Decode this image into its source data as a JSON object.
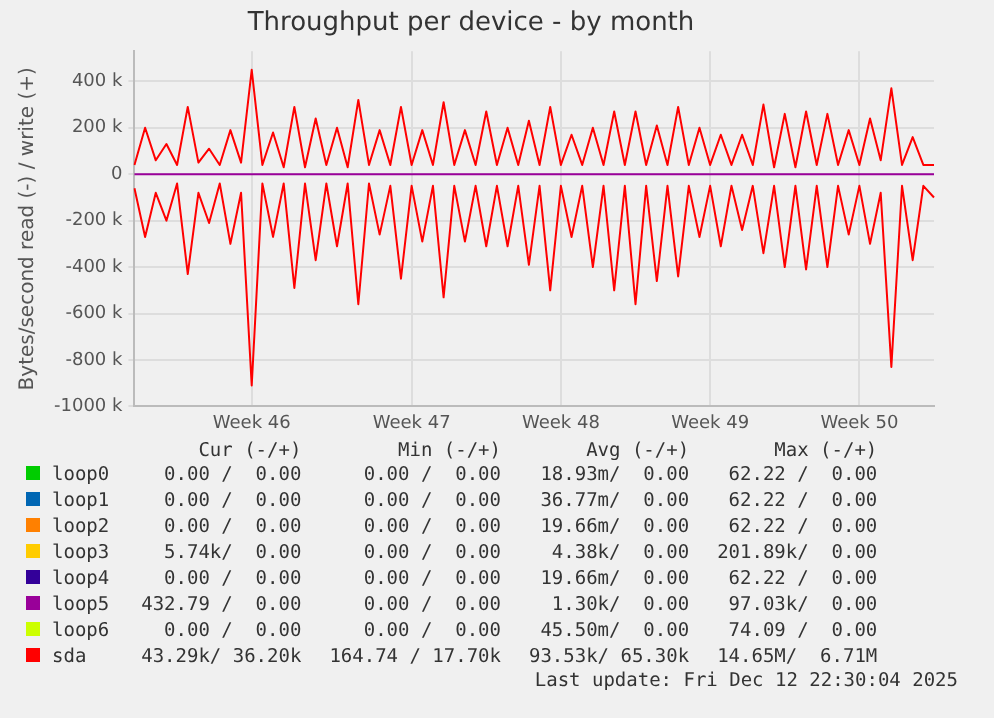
{
  "chart_data": {
    "type": "line",
    "title": "Throughput per device - by month",
    "ylabel": "Bytes/second read (-) / write (+)",
    "categories": [
      null,
      null,
      null,
      null,
      null,
      null,
      null,
      null,
      null,
      null,
      null,
      "Week 46",
      null,
      null,
      null,
      null,
      null,
      null,
      null,
      null,
      null,
      null,
      null,
      null,
      null,
      null,
      "Week 47",
      null,
      null,
      null,
      null,
      null,
      null,
      null,
      null,
      null,
      null,
      null,
      null,
      null,
      "Week 48",
      null,
      null,
      null,
      null,
      null,
      null,
      null,
      null,
      null,
      null,
      null,
      null,
      null,
      "Week 49",
      null,
      null,
      null,
      null,
      null,
      null,
      null,
      null,
      null,
      null,
      null,
      null,
      null,
      "Week 50",
      null,
      null,
      null,
      null,
      null,
      null,
      null
    ],
    "ylim": [
      -1000000,
      530000
    ],
    "yticks": [
      {
        "value": -1000000,
        "label": "-1000 k"
      },
      {
        "value": -800000,
        "label": "-800 k"
      },
      {
        "value": -600000,
        "label": "-600 k"
      },
      {
        "value": -400000,
        "label": "-400 k"
      },
      {
        "value": -200000,
        "label": "-200 k"
      },
      0,
      {
        "value": 200000,
        "label": "200 k"
      },
      {
        "value": 400000,
        "label": "400 k"
      }
    ],
    "grid": true,
    "legend": "bottom",
    "marker": "none",
    "line_style": "solid",
    "series": [
      {
        "name": "loop0",
        "color": "#00cc00",
        "values": [
          null,
          null,
          null,
          null,
          null,
          null,
          null,
          null,
          null,
          null,
          null,
          null,
          null,
          null,
          null,
          null,
          null,
          null,
          null,
          null,
          null,
          null,
          null,
          null,
          null,
          null,
          null,
          null,
          null,
          null,
          null,
          null,
          null,
          null,
          null,
          null,
          null,
          null,
          null,
          null,
          null,
          null,
          null,
          null,
          null,
          null,
          null,
          null,
          null,
          null,
          null,
          null,
          null,
          null,
          null,
          null,
          null,
          null,
          null,
          null,
          null,
          null,
          null,
          null,
          null,
          null,
          null,
          null,
          null,
          null,
          null,
          null,
          null,
          null,
          null,
          null
        ]
      },
      {
        "name": "loop1",
        "color": "#0066b3",
        "values": [
          null,
          null,
          null,
          null,
          null,
          null,
          null,
          null,
          null,
          null,
          null,
          null,
          null,
          null,
          null,
          null,
          null,
          null,
          null,
          null,
          null,
          null,
          null,
          null,
          null,
          null,
          null,
          null,
          null,
          null,
          null,
          null,
          null,
          null,
          null,
          null,
          null,
          null,
          null,
          null,
          null,
          null,
          null,
          null,
          null,
          null,
          null,
          null,
          null,
          null,
          null,
          null,
          null,
          null,
          null,
          null,
          null,
          null,
          null,
          null,
          null,
          null,
          null,
          null,
          null,
          null,
          null,
          null,
          null,
          null,
          null,
          null,
          null,
          null,
          null,
          null
        ]
      },
      {
        "name": "loop2",
        "color": "#ff8000",
        "values": [
          null,
          null,
          null,
          null,
          null,
          null,
          null,
          null,
          null,
          null,
          null,
          null,
          null,
          null,
          null,
          null,
          null,
          null,
          null,
          null,
          null,
          null,
          null,
          null,
          null,
          null,
          null,
          null,
          null,
          null,
          null,
          null,
          null,
          null,
          null,
          null,
          null,
          null,
          null,
          null,
          null,
          null,
          null,
          null,
          null,
          null,
          null,
          null,
          null,
          null,
          null,
          null,
          null,
          null,
          null,
          null,
          null,
          null,
          null,
          null,
          null,
          null,
          null,
          null,
          null,
          null,
          null,
          null,
          null,
          null,
          null,
          null,
          null,
          null,
          null,
          null
        ]
      },
      {
        "name": "loop3",
        "color": "#ffcc00",
        "values": [
          null,
          null,
          null,
          null,
          null,
          null,
          null,
          null,
          null,
          null,
          null,
          null,
          null,
          null,
          null,
          null,
          null,
          null,
          null,
          null,
          null,
          null,
          null,
          null,
          null,
          null,
          null,
          null,
          null,
          null,
          null,
          null,
          null,
          null,
          null,
          null,
          null,
          null,
          null,
          null,
          null,
          null,
          null,
          null,
          null,
          null,
          null,
          null,
          null,
          null,
          null,
          null,
          null,
          null,
          null,
          null,
          null,
          null,
          null,
          null,
          null,
          null,
          null,
          null,
          null,
          null,
          null,
          null,
          null,
          null,
          null,
          null,
          null,
          null,
          null,
          null
        ]
      },
      {
        "name": "loop4",
        "color": "#330099",
        "values": [
          null,
          null,
          null,
          null,
          null,
          null,
          null,
          null,
          null,
          null,
          null,
          null,
          null,
          null,
          null,
          null,
          null,
          null,
          null,
          null,
          null,
          null,
          null,
          null,
          null,
          null,
          null,
          null,
          null,
          null,
          null,
          null,
          null,
          null,
          null,
          null,
          null,
          null,
          null,
          null,
          null,
          null,
          null,
          null,
          null,
          null,
          null,
          null,
          null,
          null,
          null,
          null,
          null,
          null,
          null,
          null,
          null,
          null,
          null,
          null,
          null,
          null,
          null,
          null,
          null,
          null,
          null,
          null,
          null,
          null,
          null,
          null,
          null,
          null,
          null,
          null
        ]
      },
      {
        "name": "loop5",
        "color": "#990099",
        "values": [
          0,
          0,
          0,
          0,
          0,
          0,
          0,
          0,
          0,
          0,
          0,
          0,
          0,
          0,
          0,
          0,
          0,
          0,
          0,
          0,
          0,
          0,
          0,
          0,
          0,
          0,
          0,
          0,
          0,
          0,
          0,
          0,
          0,
          0,
          0,
          0,
          0,
          0,
          0,
          0,
          0,
          0,
          0,
          0,
          0,
          0,
          0,
          0,
          0,
          0,
          0,
          0,
          0,
          0,
          0,
          0,
          0,
          0,
          0,
          0,
          0,
          0,
          0,
          0,
          0,
          0,
          0,
          0,
          0,
          0,
          0,
          0,
          0,
          0,
          0,
          0
        ]
      },
      {
        "name": "loop6",
        "color": "#ccff00",
        "values": [
          null,
          null,
          null,
          null,
          null,
          null,
          null,
          null,
          null,
          null,
          null,
          null,
          null,
          null,
          null,
          null,
          null,
          null,
          null,
          null,
          null,
          null,
          null,
          null,
          null,
          null,
          null,
          null,
          null,
          null,
          null,
          null,
          null,
          null,
          null,
          null,
          null,
          null,
          null,
          null,
          null,
          null,
          null,
          null,
          null,
          null,
          null,
          null,
          null,
          null,
          null,
          null,
          null,
          null,
          null,
          null,
          null,
          null,
          null,
          null,
          null,
          null,
          null,
          null,
          null,
          null,
          null,
          null,
          null,
          null,
          null,
          null,
          null,
          null,
          null,
          null
        ]
      },
      {
        "name": "sda",
        "color": "#ff0000",
        "values": [
          40000,
          200000,
          60000,
          130000,
          40000,
          290000,
          50000,
          110000,
          40000,
          190000,
          50000,
          450000,
          40000,
          180000,
          30000,
          290000,
          30000,
          240000,
          40000,
          200000,
          30000,
          320000,
          40000,
          190000,
          40000,
          290000,
          40000,
          190000,
          40000,
          310000,
          40000,
          190000,
          40000,
          270000,
          40000,
          200000,
          40000,
          230000,
          40000,
          290000,
          40000,
          170000,
          40000,
          200000,
          40000,
          270000,
          40000,
          270000,
          40000,
          210000,
          40000,
          290000,
          40000,
          200000,
          40000,
          170000,
          40000,
          170000,
          40000,
          300000,
          30000,
          260000,
          30000,
          270000,
          40000,
          260000,
          40000,
          190000,
          40000,
          240000,
          60000,
          370000,
          40000,
          160000,
          40000,
          40000
        ]
      },
      {
        "color": "#ff0000",
        "values": [
          -60000,
          -270000,
          -80000,
          -200000,
          -40000,
          -430000,
          -80000,
          -210000,
          -40000,
          -300000,
          -80000,
          -910000,
          -40000,
          -270000,
          -40000,
          -490000,
          -40000,
          -370000,
          -40000,
          -310000,
          -40000,
          -560000,
          -40000,
          -260000,
          -50000,
          -450000,
          -50000,
          -290000,
          -50000,
          -530000,
          -50000,
          -290000,
          -50000,
          -310000,
          -50000,
          -310000,
          -50000,
          -390000,
          -50000,
          -500000,
          -50000,
          -270000,
          -50000,
          -400000,
          -50000,
          -500000,
          -50000,
          -560000,
          -50000,
          -460000,
          -50000,
          -440000,
          -50000,
          -270000,
          -50000,
          -310000,
          -50000,
          -240000,
          -50000,
          -340000,
          -50000,
          -400000,
          -50000,
          -410000,
          -50000,
          -400000,
          -50000,
          -260000,
          -50000,
          -300000,
          -80000,
          -830000,
          -50000,
          -370000,
          -50000,
          -100000
        ]
      }
    ],
    "annotations": [
      "Cur (-/+)",
      "Min (-/+)",
      "Avg (-/+)",
      "Max (-/+)",
      "0.00 /  0.00",
      "0.00 /  0.00",
      "18.93m/  0.00",
      "62.22 /  0.00",
      "0.00 /  0.00",
      "0.00 /  0.00",
      "36.77m/  0.00",
      "62.22 /  0.00",
      "0.00 /  0.00",
      "0.00 /  0.00",
      "19.66m/  0.00",
      "62.22 /  0.00",
      "5.74k/  0.00",
      "0.00 /  0.00",
      "4.38k/  0.00",
      "201.89k/  0.00",
      "0.00 /  0.00",
      "0.00 /  0.00",
      "19.66m/  0.00",
      "62.22 /  0.00",
      "432.79 /  0.00",
      "0.00 /  0.00",
      "1.30k/  0.00",
      "97.03k/  0.00",
      "0.00 /  0.00",
      "0.00 /  0.00",
      "45.50m/  0.00",
      "74.09 /  0.00",
      "43.29k/ 36.20k",
      "164.74 / 17.70k",
      "93.53k/ 65.30k",
      "14.65M/  6.71M",
      "Last update: Fri Dec 12 22:30:04 2025"
    ]
  }
}
